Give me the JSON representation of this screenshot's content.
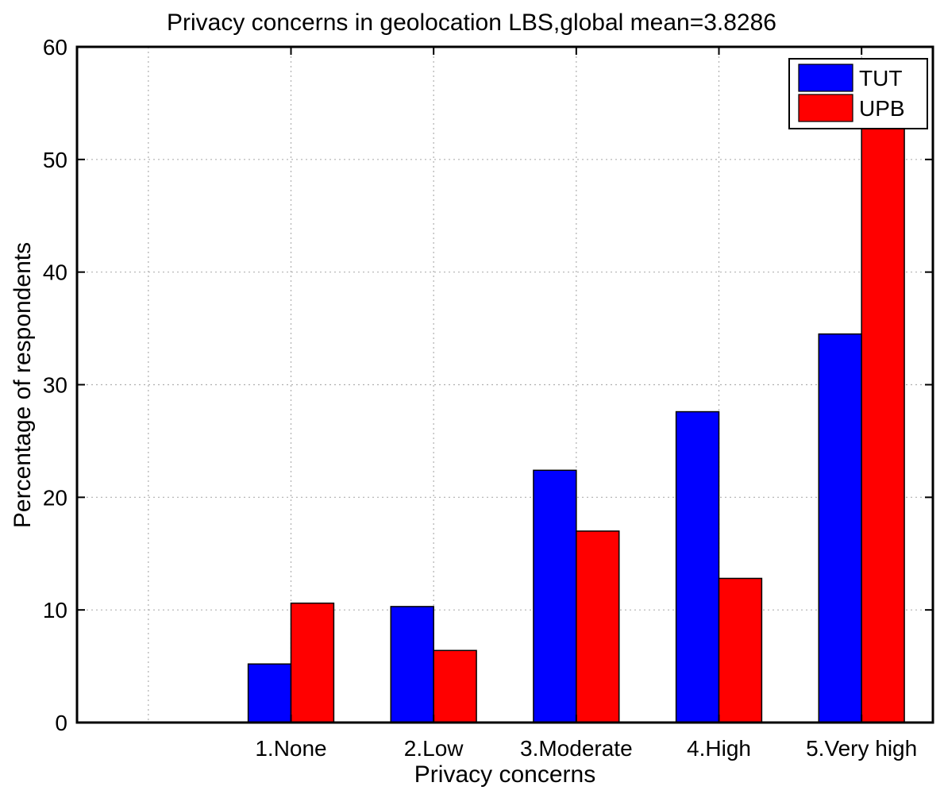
{
  "chart_data": {
    "type": "bar",
    "title": "Privacy concerns in geolocation LBS,global mean=3.8286",
    "xlabel": "Privacy concerns",
    "ylabel": "Percentage of respondents",
    "ylim": [
      0,
      60
    ],
    "yticks": [
      0,
      10,
      20,
      30,
      40,
      50,
      60
    ],
    "x_domain": [
      -0.5,
      5.5
    ],
    "grid": true,
    "legend_position": "top-right",
    "categories": [
      "1.None",
      "2.Low",
      "3.Moderate",
      "4.High",
      "5.Very high"
    ],
    "series": [
      {
        "name": "TUT",
        "color": "#0000ff",
        "values": [
          5.2,
          10.3,
          22.4,
          27.6,
          34.5
        ]
      },
      {
        "name": "UPB",
        "color": "#ff0000",
        "values": [
          10.6,
          6.4,
          17.0,
          12.8,
          53.2
        ]
      }
    ]
  }
}
